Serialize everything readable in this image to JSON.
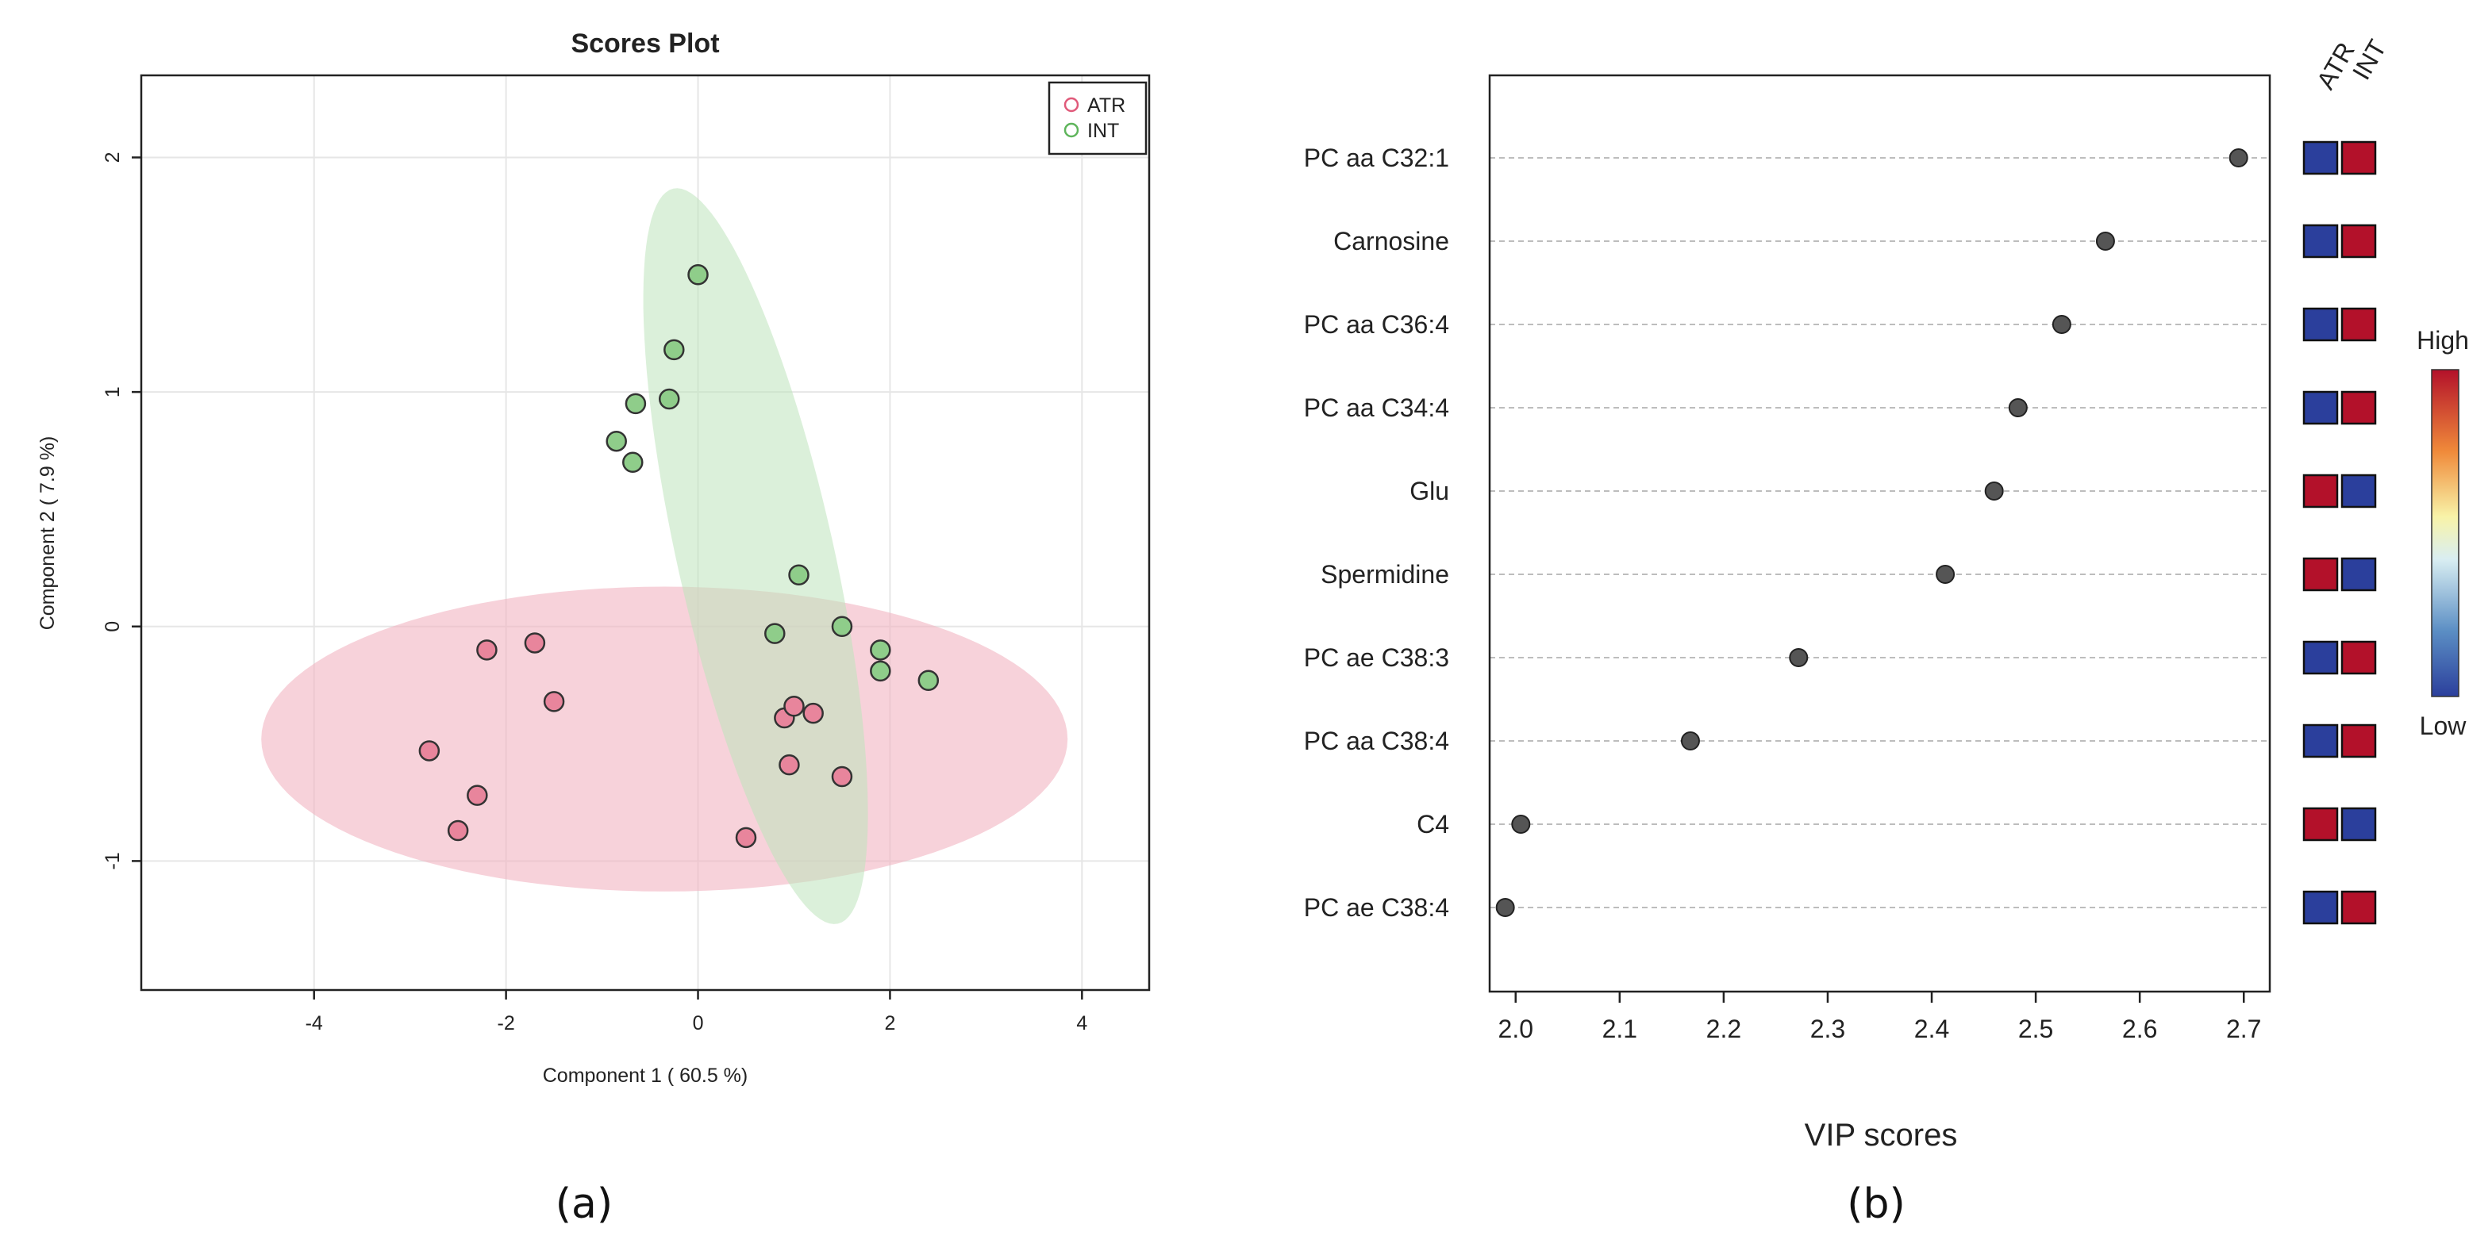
{
  "captions": {
    "a": "(a)",
    "b": "(b)"
  },
  "colors": {
    "atr_fill": "#e8859c",
    "atr_ellipse": "#f2b4c1",
    "atr_legend": "#e05a7a",
    "int_fill": "#8fcd8a",
    "int_ellipse": "#bde3bb",
    "int_legend": "#5fb55c",
    "point_dark": "#555555",
    "low": "#2b3f9c",
    "high": "#b3112a"
  },
  "chart_data": [
    {
      "type": "scatter",
      "title": "Scores Plot",
      "xlabel": "Component 1 ( 60.5 %)",
      "ylabel": "Component 2 ( 7.9 %)",
      "xlim": [
        -5.8,
        4.7
      ],
      "ylim": [
        -1.55,
        2.35
      ],
      "xticks": [
        -4,
        -2,
        0,
        2,
        4
      ],
      "yticks": [
        -1,
        0,
        1,
        2
      ],
      "legend": {
        "position": "top-right",
        "entries": [
          "ATR",
          "INT"
        ]
      },
      "ellipses": [
        {
          "group": "ATR",
          "center": [
            -0.35,
            -0.48
          ],
          "semi_axes": [
            4.2,
            0.65
          ],
          "angle_deg": 0
        },
        {
          "group": "INT",
          "center": [
            0.6,
            0.3
          ],
          "semi_axes": [
            1.82,
            0.72
          ],
          "angle_deg": -56.5
        }
      ],
      "series": [
        {
          "name": "ATR",
          "points": [
            [
              -2.8,
              -0.53
            ],
            [
              -2.3,
              -0.72
            ],
            [
              -2.5,
              -0.87
            ],
            [
              -2.2,
              -0.1
            ],
            [
              -1.7,
              -0.07
            ],
            [
              -1.5,
              -0.32
            ],
            [
              0.5,
              -0.9
            ],
            [
              0.9,
              -0.39
            ],
            [
              1.0,
              -0.34
            ],
            [
              1.2,
              -0.37
            ],
            [
              0.95,
              -0.59
            ],
            [
              1.5,
              -0.64
            ]
          ]
        },
        {
          "name": "INT",
          "points": [
            [
              0.0,
              1.5
            ],
            [
              -0.25,
              1.18
            ],
            [
              -0.65,
              0.95
            ],
            [
              -0.3,
              0.97
            ],
            [
              -0.85,
              0.79
            ],
            [
              -0.68,
              0.7
            ],
            [
              1.05,
              0.22
            ],
            [
              0.8,
              -0.03
            ],
            [
              1.5,
              0.0
            ],
            [
              1.9,
              -0.1
            ],
            [
              1.9,
              -0.19
            ],
            [
              2.4,
              -0.23
            ]
          ]
        }
      ]
    },
    {
      "type": "scatter",
      "title": "",
      "xlabel": "VIP scores",
      "ylabel": "",
      "xlim": [
        1.975,
        2.725
      ],
      "xticks": [
        "2.0",
        "2.1",
        "2.2",
        "2.3",
        "2.4",
        "2.5",
        "2.6",
        "2.7"
      ],
      "heatmap_columns": [
        "ATR",
        "INT"
      ],
      "colorbar": {
        "high_label": "High",
        "low_label": "Low"
      },
      "features": [
        {
          "name": "PC aa C32:1",
          "vip": 2.695,
          "atr": "low",
          "int": "high"
        },
        {
          "name": "Carnosine",
          "vip": 2.567,
          "atr": "low",
          "int": "high"
        },
        {
          "name": "PC aa C36:4",
          "vip": 2.525,
          "atr": "low",
          "int": "high"
        },
        {
          "name": "PC aa C34:4",
          "vip": 2.483,
          "atr": "low",
          "int": "high"
        },
        {
          "name": "Glu",
          "vip": 2.46,
          "atr": "high",
          "int": "low"
        },
        {
          "name": "Spermidine",
          "vip": 2.413,
          "atr": "high",
          "int": "low"
        },
        {
          "name": "PC ae C38:3",
          "vip": 2.272,
          "atr": "low",
          "int": "high"
        },
        {
          "name": "PC aa C38:4",
          "vip": 2.168,
          "atr": "low",
          "int": "high"
        },
        {
          "name": "C4",
          "vip": 2.005,
          "atr": "high",
          "int": "low"
        },
        {
          "name": "PC ae C38:4",
          "vip": 1.99,
          "atr": "low",
          "int": "high"
        }
      ]
    }
  ]
}
